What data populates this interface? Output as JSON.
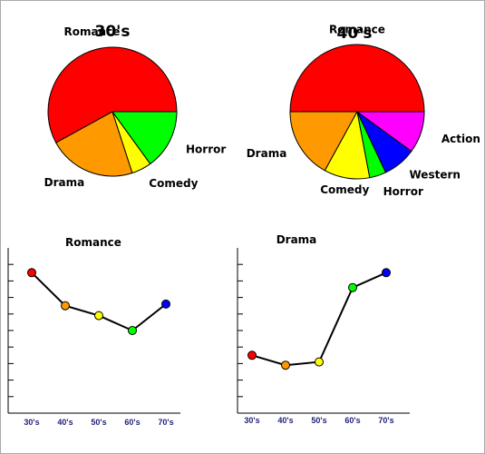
{
  "chart_data": [
    {
      "type": "pie",
      "title": "30's",
      "slices": [
        {
          "label": "Romance",
          "value": 58,
          "color": "#ff0000"
        },
        {
          "label": "Drama",
          "value": 22,
          "color": "#ff9900"
        },
        {
          "label": "Comedy",
          "value": 5,
          "color": "#ffff00"
        },
        {
          "label": "Horror",
          "value": 15,
          "color": "#00ff00"
        }
      ]
    },
    {
      "type": "pie",
      "title": "40's",
      "slices": [
        {
          "label": "Romance",
          "value": 50,
          "color": "#ff0000"
        },
        {
          "label": "Drama",
          "value": 17,
          "color": "#ff9900"
        },
        {
          "label": "Comedy",
          "value": 11,
          "color": "#ffff00"
        },
        {
          "label": "Horror",
          "value": 4,
          "color": "#00ff00"
        },
        {
          "label": "Western",
          "value": 8,
          "color": "#0000ff"
        },
        {
          "label": "Action",
          "value": 10,
          "color": "#ff00ff"
        }
      ]
    },
    {
      "type": "line",
      "title": "Romance",
      "categories": [
        "30's",
        "40's",
        "50's",
        "60's",
        "70's"
      ],
      "values": [
        8.5,
        6.5,
        5.9,
        5.0,
        6.6
      ],
      "point_colors": [
        "#ff0000",
        "#ff9900",
        "#ffff00",
        "#00ff00",
        "#0000ff"
      ],
      "ylim": [
        0,
        10
      ],
      "y_ticks": 9
    },
    {
      "type": "line",
      "title": "Drama",
      "categories": [
        "30's",
        "40's",
        "50's",
        "60's",
        "70's"
      ],
      "values": [
        3.5,
        2.9,
        3.1,
        7.6,
        8.5
      ],
      "point_colors": [
        "#ff0000",
        "#ff9900",
        "#ffff00",
        "#00ff00",
        "#0000ff"
      ],
      "ylim": [
        0,
        10
      ],
      "y_ticks": 9
    }
  ]
}
